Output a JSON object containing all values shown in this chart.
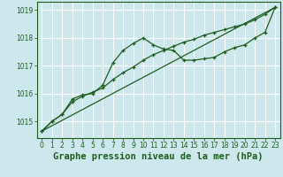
{
  "title": "Graphe pression niveau de la mer (hPa)",
  "bg_color": "#cce8ec",
  "grid_color": "#ffffff",
  "line_color": "#1e5c1e",
  "xlim": [
    -0.5,
    23.5
  ],
  "ylim": [
    1014.4,
    1019.3
  ],
  "yticks": [
    1015,
    1016,
    1017,
    1018,
    1019
  ],
  "xticks": [
    0,
    1,
    2,
    3,
    4,
    5,
    6,
    7,
    8,
    9,
    10,
    11,
    12,
    13,
    14,
    15,
    16,
    17,
    18,
    19,
    20,
    21,
    22,
    23
  ],
  "series1_x": [
    0,
    1,
    2,
    3,
    4,
    5,
    6,
    7,
    8,
    9,
    10,
    11,
    12,
    13,
    14,
    15,
    16,
    17,
    18,
    19,
    20,
    21,
    22,
    23
  ],
  "series1_y": [
    1014.65,
    1015.0,
    1015.25,
    1015.8,
    1015.95,
    1016.0,
    1016.3,
    1017.1,
    1017.55,
    1017.8,
    1018.0,
    1017.75,
    1017.6,
    1017.55,
    1017.2,
    1017.2,
    1017.25,
    1017.3,
    1017.5,
    1017.65,
    1017.75,
    1018.0,
    1018.2,
    1019.1
  ],
  "series2_x": [
    0,
    23
  ],
  "series2_y": [
    1014.65,
    1019.1
  ],
  "series3_x": [
    0,
    1,
    2,
    3,
    4,
    5,
    6,
    7,
    8,
    9,
    10,
    11,
    12,
    13,
    14,
    15,
    16,
    17,
    18,
    19,
    20,
    21,
    22,
    23
  ],
  "series3_y": [
    1014.65,
    1015.0,
    1015.25,
    1015.7,
    1015.9,
    1016.05,
    1016.2,
    1016.5,
    1016.75,
    1016.95,
    1017.2,
    1017.4,
    1017.55,
    1017.7,
    1017.85,
    1017.95,
    1018.1,
    1018.2,
    1018.3,
    1018.4,
    1018.5,
    1018.65,
    1018.85,
    1019.1
  ],
  "title_fontsize": 7.5,
  "tick_fontsize": 5.5
}
